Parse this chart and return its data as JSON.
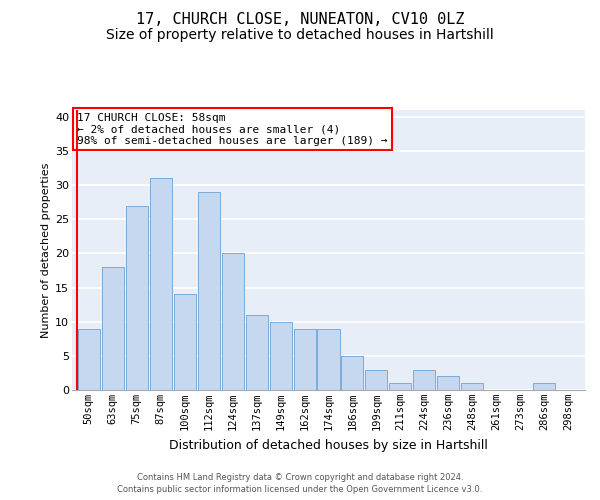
{
  "title1": "17, CHURCH CLOSE, NUNEATON, CV10 0LZ",
  "title2": "Size of property relative to detached houses in Hartshill",
  "xlabel": "Distribution of detached houses by size in Hartshill",
  "ylabel": "Number of detached properties",
  "categories": [
    "50sqm",
    "63sqm",
    "75sqm",
    "87sqm",
    "100sqm",
    "112sqm",
    "124sqm",
    "137sqm",
    "149sqm",
    "162sqm",
    "174sqm",
    "186sqm",
    "199sqm",
    "211sqm",
    "224sqm",
    "236sqm",
    "248sqm",
    "261sqm",
    "273sqm",
    "286sqm",
    "298sqm"
  ],
  "values": [
    9,
    18,
    27,
    31,
    14,
    29,
    20,
    11,
    10,
    9,
    9,
    5,
    3,
    1,
    3,
    2,
    1,
    0,
    0,
    1,
    0
  ],
  "bar_color": "#c5d8f0",
  "bar_edge_color": "#7aabda",
  "annotation_text": "17 CHURCH CLOSE: 58sqm\n← 2% of detached houses are smaller (4)\n98% of semi-detached houses are larger (189) →",
  "annotation_box_color": "white",
  "annotation_box_edge": "red",
  "vline_color": "red",
  "ylim": [
    0,
    41
  ],
  "yticks": [
    0,
    5,
    10,
    15,
    20,
    25,
    30,
    35,
    40
  ],
  "footer1": "Contains HM Land Registry data © Crown copyright and database right 2024.",
  "footer2": "Contains public sector information licensed under the Open Government Licence v3.0.",
  "bg_color": "#ffffff",
  "plot_bg_color": "#e8eef8",
  "grid_color": "#ffffff",
  "title1_fontsize": 11,
  "title2_fontsize": 10,
  "xlabel_fontsize": 9,
  "ylabel_fontsize": 8,
  "tick_fontsize": 7.5,
  "footer_fontsize": 6,
  "ann_fontsize": 8
}
